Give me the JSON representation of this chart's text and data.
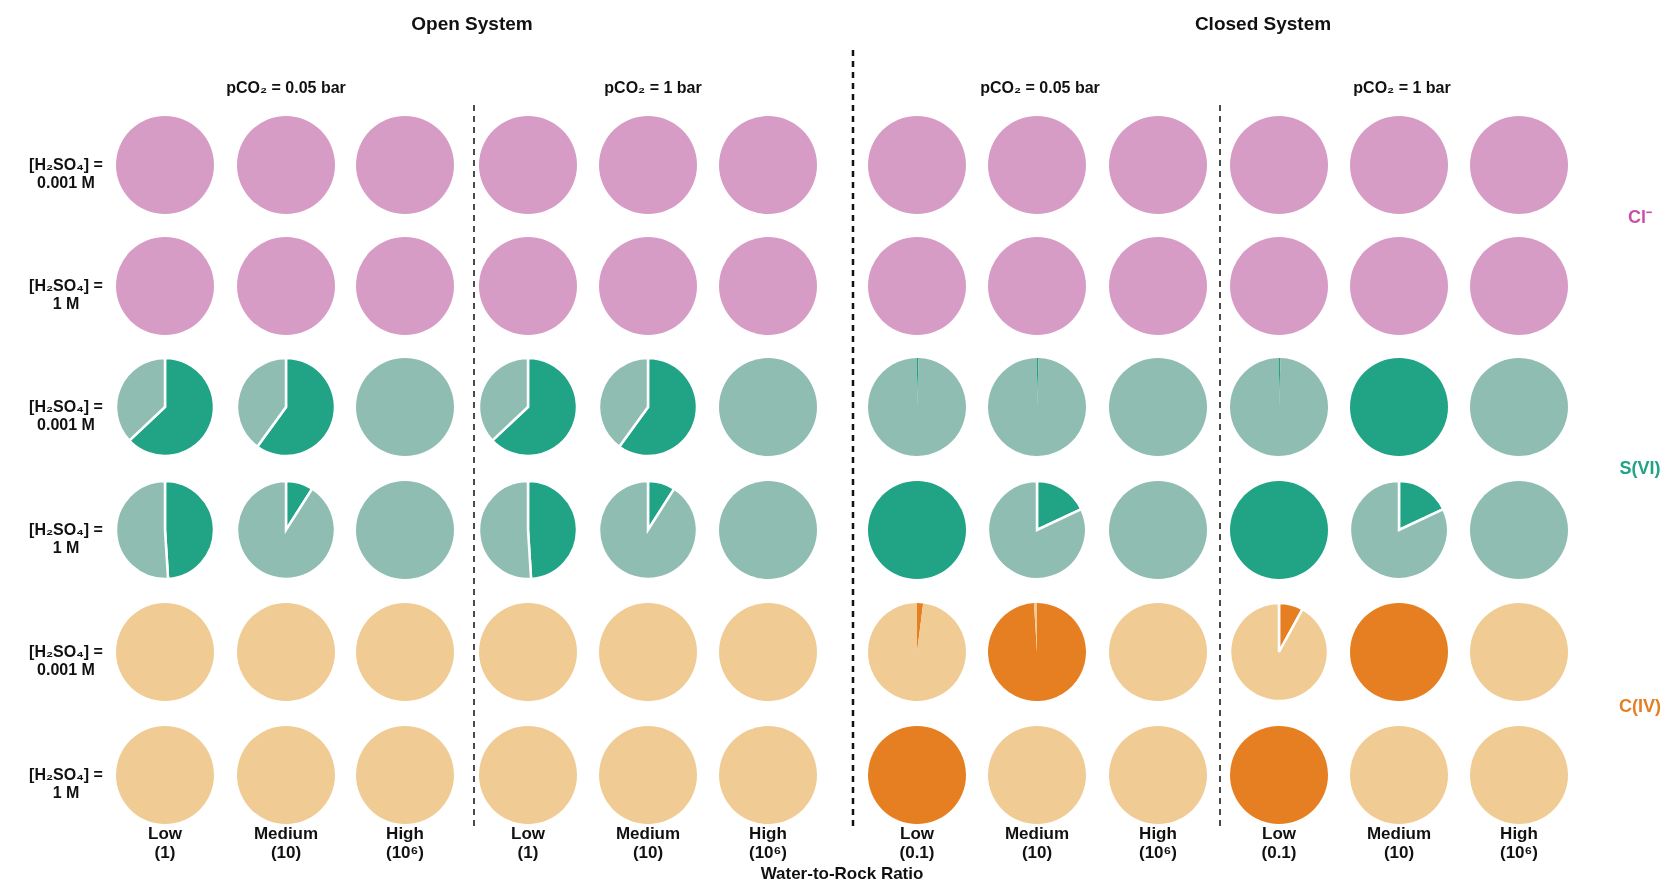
{
  "chart_data": [
    {
      "type": "other",
      "xlabel": "Water-to-Rock Ratio",
      "colors": [
        "#c94fa6",
        "#21a386",
        "#e67f22"
      ],
      "annotations": [
        "Open System",
        "Closed System",
        "pCO₂ = 0.05 bar",
        "pCO₂ = 1 bar",
        "pCO₂ = 0.05 bar",
        "pCO₂ = 1 bar",
        "[H₂SO₄] =\n0.001 M",
        "[H₂SO₄] =\n1 M",
        "[H₂SO₄] =\n0.001 M",
        "[H₂SO₄] =\n1 M",
        "[H₂SO₄] =\n0.001 M",
        "[H₂SO₄] =\n1 M",
        "Cl⁻",
        "S(VI)",
        "C(IV)",
        "Low\n(1)",
        "Medium\n(10)",
        "High\n(10⁶)",
        "Low\n(1)",
        "Medium\n(10)",
        "High\n(10⁶)",
        "Low\n(0.1)",
        "Medium\n(10)",
        "High\n(10⁶)",
        "Low\n(0.1)",
        "Medium\n(10)",
        "High\n(10⁶)"
      ]
    },
    {
      "type": "pie",
      "series": [
        {
          "values": [
            100
          ],
          "colors": [
            "#d79cc6"
          ]
        },
        {
          "values": [
            100
          ],
          "colors": [
            "#d79cc6"
          ]
        },
        {
          "values": [
            100
          ],
          "colors": [
            "#d79cc6"
          ]
        },
        {
          "values": [
            100
          ],
          "colors": [
            "#d79cc6"
          ]
        },
        {
          "values": [
            100
          ],
          "colors": [
            "#d79cc6"
          ]
        },
        {
          "values": [
            100
          ],
          "colors": [
            "#d79cc6"
          ]
        },
        {
          "values": [
            100
          ],
          "colors": [
            "#d79cc6"
          ]
        },
        {
          "values": [
            100
          ],
          "colors": [
            "#d79cc6"
          ]
        },
        {
          "values": [
            100
          ],
          "colors": [
            "#d79cc6"
          ]
        },
        {
          "values": [
            100
          ],
          "colors": [
            "#d79cc6"
          ]
        },
        {
          "values": [
            100
          ],
          "colors": [
            "#d79cc6"
          ]
        },
        {
          "values": [
            100
          ],
          "colors": [
            "#d79cc6"
          ]
        }
      ]
    },
    {
      "type": "pie",
      "series": [
        {
          "values": [
            100
          ],
          "colors": [
            "#d79cc6"
          ]
        },
        {
          "values": [
            100
          ],
          "colors": [
            "#d79cc6"
          ]
        },
        {
          "values": [
            100
          ],
          "colors": [
            "#d79cc6"
          ]
        },
        {
          "values": [
            100
          ],
          "colors": [
            "#d79cc6"
          ]
        },
        {
          "values": [
            100
          ],
          "colors": [
            "#d79cc6"
          ]
        },
        {
          "values": [
            100
          ],
          "colors": [
            "#d79cc6"
          ]
        },
        {
          "values": [
            100
          ],
          "colors": [
            "#d79cc6"
          ]
        },
        {
          "values": [
            100
          ],
          "colors": [
            "#d79cc6"
          ]
        },
        {
          "values": [
            100
          ],
          "colors": [
            "#d79cc6"
          ]
        },
        {
          "values": [
            100
          ],
          "colors": [
            "#d79cc6"
          ]
        },
        {
          "values": [
            100
          ],
          "colors": [
            "#d79cc6"
          ]
        },
        {
          "values": [
            100
          ],
          "colors": [
            "#d79cc6"
          ]
        }
      ]
    },
    {
      "type": "pie",
      "series": [
        {
          "values": [
            63,
            37
          ],
          "colors": [
            "#21a386",
            "#8fbdb2"
          ]
        },
        {
          "values": [
            60,
            40
          ],
          "colors": [
            "#21a386",
            "#8fbdb2"
          ]
        },
        {
          "values": [
            100
          ],
          "colors": [
            "#8fbdb2"
          ]
        },
        {
          "values": [
            63,
            37
          ],
          "colors": [
            "#21a386",
            "#8fbdb2"
          ]
        },
        {
          "values": [
            60,
            40
          ],
          "colors": [
            "#21a386",
            "#8fbdb2"
          ]
        },
        {
          "values": [
            100
          ],
          "colors": [
            "#8fbdb2"
          ]
        },
        {
          "values": [
            0.5,
            99.5
          ],
          "colors": [
            "#21a386",
            "#8fbdb2"
          ]
        },
        {
          "values": [
            0.5,
            99.5
          ],
          "colors": [
            "#21a386",
            "#8fbdb2"
          ]
        },
        {
          "values": [
            100
          ],
          "colors": [
            "#8fbdb2"
          ]
        },
        {
          "values": [
            0.5,
            99.5
          ],
          "colors": [
            "#21a386",
            "#8fbdb2"
          ]
        },
        {
          "values": [
            100
          ],
          "colors": [
            "#21a386"
          ]
        },
        {
          "values": [
            100
          ],
          "colors": [
            "#8fbdb2"
          ]
        }
      ]
    },
    {
      "type": "pie",
      "series": [
        {
          "values": [
            49,
            51
          ],
          "colors": [
            "#21a386",
            "#8fbdb2"
          ]
        },
        {
          "values": [
            9,
            91
          ],
          "colors": [
            "#21a386",
            "#8fbdb2"
          ]
        },
        {
          "values": [
            100
          ],
          "colors": [
            "#8fbdb2"
          ]
        },
        {
          "values": [
            49,
            51
          ],
          "colors": [
            "#21a386",
            "#8fbdb2"
          ]
        },
        {
          "values": [
            9,
            91
          ],
          "colors": [
            "#21a386",
            "#8fbdb2"
          ]
        },
        {
          "values": [
            100
          ],
          "colors": [
            "#8fbdb2"
          ]
        },
        {
          "values": [
            100
          ],
          "colors": [
            "#21a386"
          ]
        },
        {
          "values": [
            18,
            82
          ],
          "colors": [
            "#21a386",
            "#8fbdb2"
          ]
        },
        {
          "values": [
            100
          ],
          "colors": [
            "#8fbdb2"
          ]
        },
        {
          "values": [
            100
          ],
          "colors": [
            "#21a386"
          ]
        },
        {
          "values": [
            18,
            82
          ],
          "colors": [
            "#21a386",
            "#8fbdb2"
          ]
        },
        {
          "values": [
            100
          ],
          "colors": [
            "#8fbdb2"
          ]
        }
      ]
    },
    {
      "type": "pie",
      "series": [
        {
          "values": [
            100
          ],
          "colors": [
            "#f0cb94"
          ]
        },
        {
          "values": [
            100
          ],
          "colors": [
            "#f0cb94"
          ]
        },
        {
          "values": [
            100
          ],
          "colors": [
            "#f0cb94"
          ]
        },
        {
          "values": [
            100
          ],
          "colors": [
            "#f0cb94"
          ]
        },
        {
          "values": [
            100
          ],
          "colors": [
            "#f0cb94"
          ]
        },
        {
          "values": [
            100
          ],
          "colors": [
            "#f0cb94"
          ]
        },
        {
          "values": [
            2,
            98
          ],
          "colors": [
            "#e67f22",
            "#f0cb94"
          ]
        },
        {
          "values": [
            99,
            1
          ],
          "colors": [
            "#e67f22",
            "#f0cb94"
          ]
        },
        {
          "values": [
            100
          ],
          "colors": [
            "#f0cb94"
          ]
        },
        {
          "values": [
            8,
            92
          ],
          "colors": [
            "#e67f22",
            "#f0cb94"
          ]
        },
        {
          "values": [
            100
          ],
          "colors": [
            "#e67f22"
          ]
        },
        {
          "values": [
            100
          ],
          "colors": [
            "#f0cb94"
          ]
        }
      ]
    },
    {
      "type": "pie",
      "series": [
        {
          "values": [
            100
          ],
          "colors": [
            "#f0cb94"
          ]
        },
        {
          "values": [
            100
          ],
          "colors": [
            "#f0cb94"
          ]
        },
        {
          "values": [
            100
          ],
          "colors": [
            "#f0cb94"
          ]
        },
        {
          "values": [
            100
          ],
          "colors": [
            "#f0cb94"
          ]
        },
        {
          "values": [
            100
          ],
          "colors": [
            "#f0cb94"
          ]
        },
        {
          "values": [
            100
          ],
          "colors": [
            "#f0cb94"
          ]
        },
        {
          "values": [
            100
          ],
          "colors": [
            "#e67f22"
          ]
        },
        {
          "values": [
            100
          ],
          "colors": [
            "#f0cb94"
          ]
        },
        {
          "values": [
            100
          ],
          "colors": [
            "#f0cb94"
          ]
        },
        {
          "values": [
            100
          ],
          "colors": [
            "#e67f22"
          ]
        },
        {
          "values": [
            100
          ],
          "colors": [
            "#f0cb94"
          ]
        },
        {
          "values": [
            100
          ],
          "colors": [
            "#f0cb94"
          ]
        }
      ]
    }
  ]
}
